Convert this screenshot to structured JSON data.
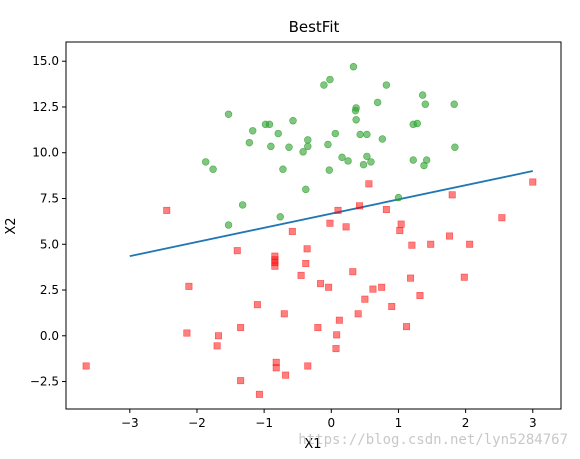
{
  "chart_data": {
    "type": "scatter",
    "title": "BestFit",
    "xlabel": "X1",
    "ylabel": "X2",
    "xlim": [
      -3.95,
      3.42
    ],
    "ylim": [
      -4.0,
      16.05
    ],
    "xticks": [
      -3,
      -2,
      -1,
      0,
      1,
      2,
      3
    ],
    "xtick_labels": [
      "−3",
      "−2",
      "−1",
      "0",
      "1",
      "2",
      "3"
    ],
    "yticks": [
      -2.5,
      0.0,
      2.5,
      5.0,
      7.5,
      10.0,
      12.5,
      15.0
    ],
    "ytick_labels": [
      "−2.5",
      "0.0",
      "2.5",
      "5.0",
      "7.5",
      "10.0",
      "12.5",
      "15.0"
    ],
    "grid": false,
    "series": [
      {
        "marker": "circle",
        "color": "#2ca02c",
        "points": [
          [
            -1.87,
            9.5
          ],
          [
            -1.76,
            9.1
          ],
          [
            -1.53,
            12.1
          ],
          [
            -1.53,
            6.05
          ],
          [
            -1.32,
            7.15
          ],
          [
            -1.22,
            10.55
          ],
          [
            -1.17,
            11.2
          ],
          [
            -0.98,
            11.55
          ],
          [
            -0.92,
            11.55
          ],
          [
            -0.9,
            10.35
          ],
          [
            -0.79,
            11.05
          ],
          [
            -0.76,
            6.5
          ],
          [
            -0.72,
            9.1
          ],
          [
            -0.63,
            10.3
          ],
          [
            -0.57,
            11.75
          ],
          [
            -0.42,
            10.05
          ],
          [
            -0.38,
            8.0
          ],
          [
            -0.35,
            10.7
          ],
          [
            -0.35,
            10.35
          ],
          [
            -0.11,
            13.7
          ],
          [
            -0.02,
            14.0
          ],
          [
            -0.05,
            10.45
          ],
          [
            -0.03,
            9.05
          ],
          [
            0.06,
            11.05
          ],
          [
            0.16,
            9.75
          ],
          [
            0.25,
            9.55
          ],
          [
            0.33,
            14.7
          ],
          [
            0.36,
            12.3
          ],
          [
            0.37,
            12.45
          ],
          [
            0.37,
            11.8
          ],
          [
            0.43,
            11.0
          ],
          [
            0.48,
            9.35
          ],
          [
            0.53,
            9.8
          ],
          [
            0.53,
            11.0
          ],
          [
            0.59,
            9.5
          ],
          [
            0.69,
            12.75
          ],
          [
            0.76,
            10.75
          ],
          [
            0.82,
            13.7
          ],
          [
            1.0,
            7.55
          ],
          [
            1.22,
            11.55
          ],
          [
            1.22,
            9.6
          ],
          [
            1.28,
            11.6
          ],
          [
            1.36,
            13.15
          ],
          [
            1.38,
            9.3
          ],
          [
            1.4,
            12.65
          ],
          [
            1.42,
            9.6
          ],
          [
            1.83,
            12.65
          ],
          [
            1.84,
            10.3
          ]
        ]
      },
      {
        "marker": "square",
        "color": "#ff0000",
        "points": [
          [
            -3.65,
            -1.65
          ],
          [
            -2.45,
            6.85
          ],
          [
            -2.15,
            0.15
          ],
          [
            -2.12,
            2.7
          ],
          [
            -1.7,
            -0.55
          ],
          [
            -1.68,
            0.0
          ],
          [
            -1.4,
            4.65
          ],
          [
            -1.35,
            0.45
          ],
          [
            -1.35,
            -2.45
          ],
          [
            -1.1,
            1.7
          ],
          [
            -1.07,
            -3.2
          ],
          [
            -0.84,
            4.35
          ],
          [
            -0.84,
            4.15
          ],
          [
            -0.84,
            4.0
          ],
          [
            -0.84,
            3.8
          ],
          [
            -0.82,
            -1.45
          ],
          [
            -0.82,
            -1.75
          ],
          [
            -0.7,
            1.2
          ],
          [
            -0.68,
            -2.15
          ],
          [
            -0.58,
            5.7
          ],
          [
            -0.45,
            3.3
          ],
          [
            -0.38,
            3.95
          ],
          [
            -0.36,
            4.75
          ],
          [
            -0.35,
            -1.65
          ],
          [
            -0.2,
            0.45
          ],
          [
            -0.16,
            2.85
          ],
          [
            -0.04,
            2.65
          ],
          [
            -0.02,
            6.15
          ],
          [
            0.07,
            -0.7
          ],
          [
            0.08,
            0.05
          ],
          [
            0.1,
            6.85
          ],
          [
            0.12,
            0.85
          ],
          [
            0.22,
            5.95
          ],
          [
            0.32,
            3.5
          ],
          [
            0.4,
            1.2
          ],
          [
            0.42,
            7.1
          ],
          [
            0.5,
            2.0
          ],
          [
            0.56,
            8.3
          ],
          [
            0.62,
            2.55
          ],
          [
            0.75,
            2.65
          ],
          [
            0.82,
            6.9
          ],
          [
            0.9,
            1.6
          ],
          [
            1.02,
            5.75
          ],
          [
            1.04,
            6.1
          ],
          [
            1.12,
            0.5
          ],
          [
            1.18,
            3.15
          ],
          [
            1.2,
            4.95
          ],
          [
            1.32,
            2.2
          ],
          [
            1.48,
            5.0
          ],
          [
            1.76,
            5.45
          ],
          [
            1.8,
            7.7
          ],
          [
            1.98,
            3.2
          ],
          [
            2.06,
            5.0
          ],
          [
            2.54,
            6.45
          ],
          [
            3.0,
            8.4
          ]
        ]
      }
    ],
    "fit_line": {
      "color": "#1f77b4",
      "points": [
        [
          -3.0,
          4.35
        ],
        [
          3.0,
          9.0
        ]
      ]
    }
  },
  "watermark": "https://blog.csdn.net/lyn5284767"
}
